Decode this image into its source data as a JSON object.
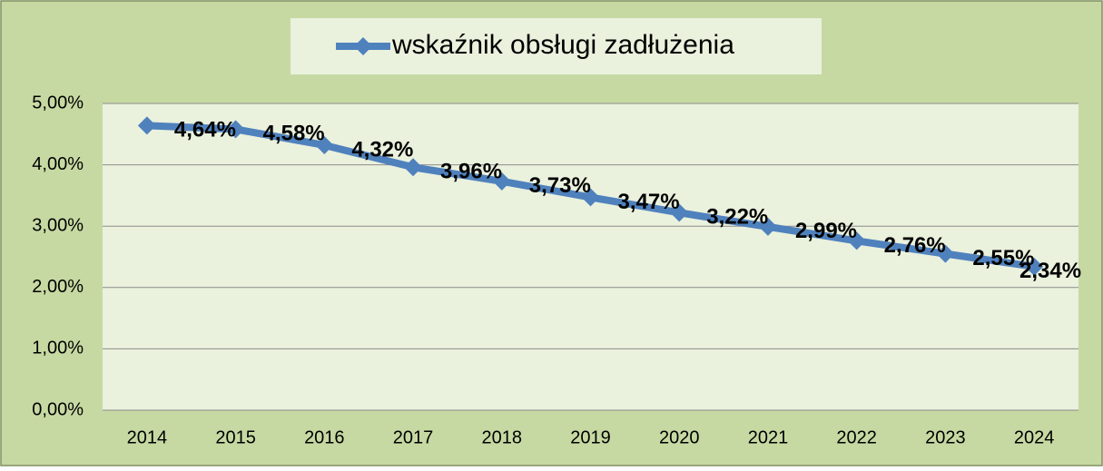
{
  "chart_data": {
    "type": "line",
    "categories": [
      "2014",
      "2015",
      "2016",
      "2017",
      "2018",
      "2019",
      "2020",
      "2021",
      "2022",
      "2023",
      "2024"
    ],
    "series": [
      {
        "name": "wskaźnik obsługi zadłużenia",
        "color": "#4f81bd",
        "values": [
          4.64,
          4.58,
          4.32,
          3.96,
          3.73,
          3.47,
          3.22,
          2.99,
          2.76,
          2.55,
          2.34
        ],
        "value_labels": [
          "4,64%",
          "4,58%",
          "4,32%",
          "3,96%",
          "3,73%",
          "3,47%",
          "3,22%",
          "2,99%",
          "2,76%",
          "2,55%",
          "2,34%"
        ]
      }
    ],
    "ylim": [
      0,
      5
    ],
    "yticks": [
      {
        "value": 0,
        "label": "0,00%"
      },
      {
        "value": 1,
        "label": "1,00%"
      },
      {
        "value": 2,
        "label": "2,00%"
      },
      {
        "value": 3,
        "label": "3,00%"
      },
      {
        "value": 4,
        "label": "4,00%"
      },
      {
        "value": 5,
        "label": "5,00%"
      }
    ],
    "grid": true,
    "legend": "top"
  }
}
